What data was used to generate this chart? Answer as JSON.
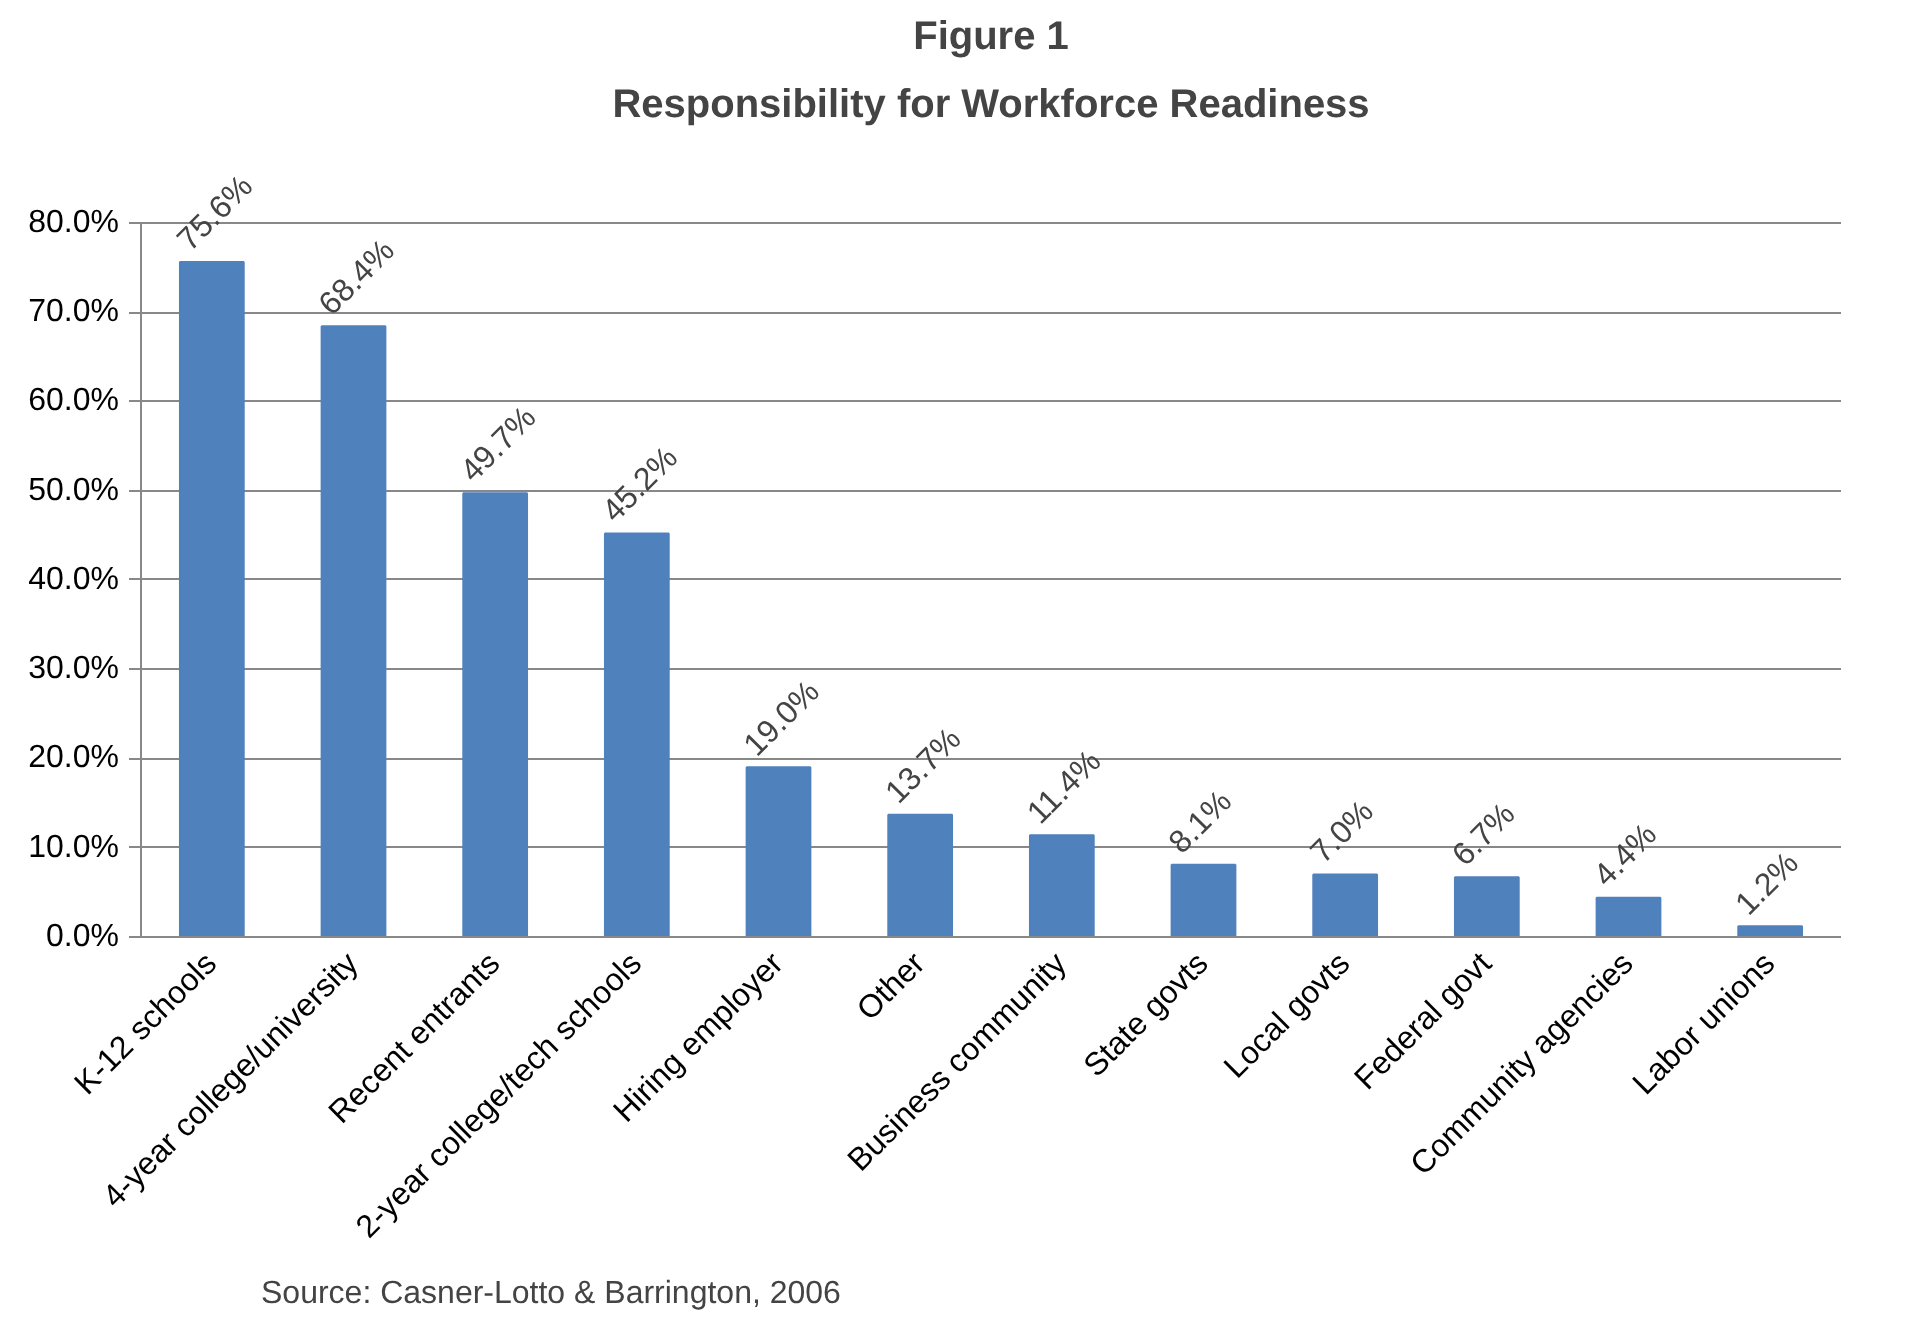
{
  "chart_data": {
    "type": "bar",
    "title": "Figure 1",
    "subtitle": "Responsibility for Workforce Readiness",
    "categories": [
      "K-12 schools",
      "4-year college/university",
      "Recent entrants",
      "2-year college/tech schools",
      "Hiring employer",
      "Other",
      "Business community",
      "State govts",
      "Local govts",
      "Federal govt",
      "Community agencies",
      "Labor unions"
    ],
    "values": [
      75.6,
      68.4,
      49.7,
      45.2,
      19.0,
      13.7,
      11.4,
      8.1,
      7.0,
      6.7,
      4.4,
      1.2
    ],
    "value_labels": [
      "75.6%",
      "68.4%",
      "49.7%",
      "45.2%",
      "19.0%",
      "13.7%",
      "11.4%",
      "8.1%",
      "7.0%",
      "6.7%",
      "4.4%",
      "1.2%"
    ],
    "color": "#4f81bd",
    "ylim": [
      0,
      80
    ],
    "yticks": [
      {
        "value": 0,
        "label": "0.0%"
      },
      {
        "value": 10,
        "label": "10.0%"
      },
      {
        "value": 20,
        "label": "20.0%"
      },
      {
        "value": 30,
        "label": "30.0%"
      },
      {
        "value": 40,
        "label": "40.0%"
      },
      {
        "value": 50,
        "label": "50.0%"
      },
      {
        "value": 60,
        "label": "60.0%"
      },
      {
        "value": 70,
        "label": "70.0%"
      },
      {
        "value": 80,
        "label": "80.0%"
      }
    ],
    "grid": "y",
    "annotations": [
      "Source:  Casner-Lotto & Barrington, 2006"
    ]
  }
}
